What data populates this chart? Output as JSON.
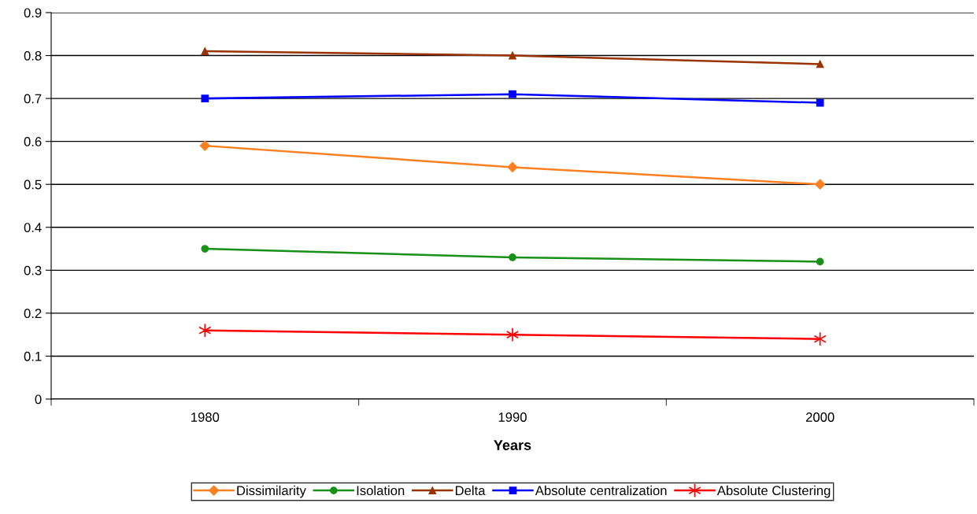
{
  "chart_data": {
    "type": "line",
    "xlabel": "Years",
    "categories": [
      "1980",
      "1990",
      "2000"
    ],
    "series": [
      {
        "name": "Dissimilarity",
        "color": "#ff8020",
        "marker": "diamond",
        "values": [
          0.59,
          0.54,
          0.5
        ]
      },
      {
        "name": "Isolation",
        "color": "#199119",
        "marker": "circle",
        "values": [
          0.35,
          0.33,
          0.32
        ]
      },
      {
        "name": "Delta",
        "color": "#993300",
        "marker": "triangle",
        "values": [
          0.81,
          0.8,
          0.78
        ]
      },
      {
        "name": "Absolute centralization",
        "color": "#0000ff",
        "marker": "square",
        "values": [
          0.7,
          0.71,
          0.69
        ]
      },
      {
        "name": "Absolute Clustering",
        "color": "#ff0000",
        "marker": "cross",
        "values": [
          0.16,
          0.15,
          0.14
        ]
      }
    ],
    "ylim": [
      0,
      0.9
    ],
    "yticks": [
      0,
      0.1,
      0.2,
      0.3,
      0.4,
      0.5,
      0.6,
      0.7,
      0.8,
      0.9
    ],
    "grid": "y",
    "legend": "bottom",
    "line_style": "solid"
  }
}
